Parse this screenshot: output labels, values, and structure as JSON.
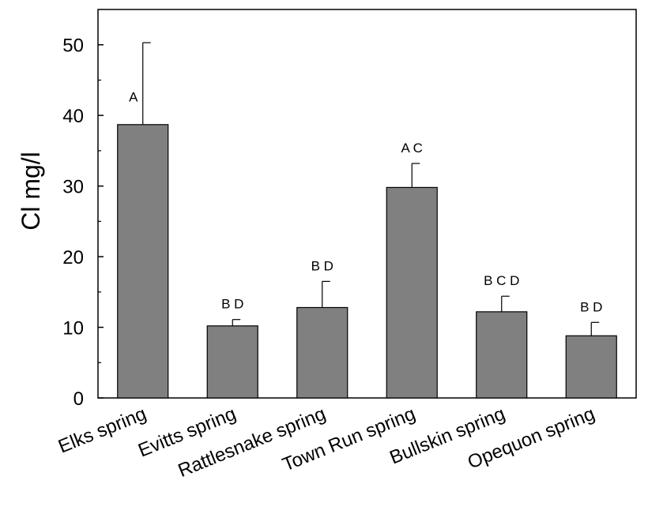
{
  "chart_data": {
    "type": "bar",
    "title": "",
    "xlabel": "",
    "ylabel": "Cl mg/l",
    "ylim": [
      0,
      55
    ],
    "yticks": [
      0,
      10,
      20,
      30,
      40,
      50
    ],
    "grid": false,
    "bar_color": "#808080",
    "categories": [
      "Elks spring",
      "Evitts spring",
      "Rattlesnake spring",
      "Town Run spring",
      "Bullskin spring",
      "Opequon spring"
    ],
    "values": [
      38.7,
      10.2,
      12.8,
      29.8,
      12.2,
      8.8
    ],
    "error_upper": [
      11.6,
      0.9,
      3.7,
      3.4,
      2.2,
      1.9
    ],
    "significance_labels": [
      "A",
      "B D",
      "B D",
      "A C",
      "B C D",
      "B D"
    ]
  }
}
